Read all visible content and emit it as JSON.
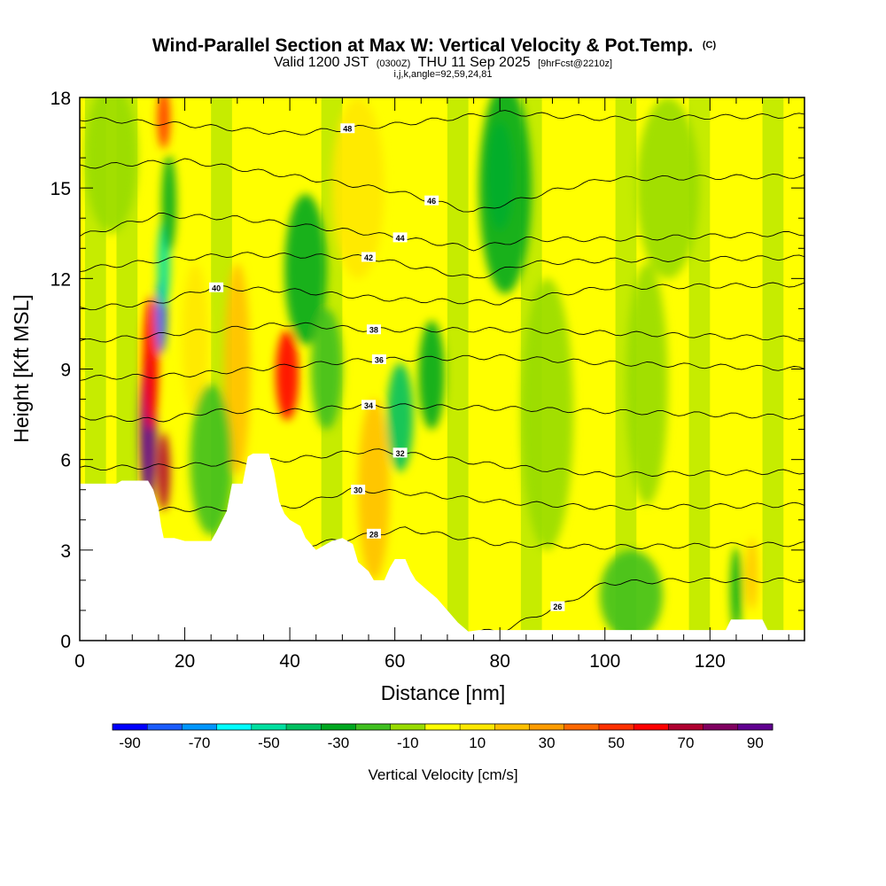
{
  "title": {
    "main": "Wind-Parallel Section at Max W: Vertical Velocity & Pot.Temp.",
    "copyright": "(C)",
    "valid_prefix": "Valid 1200 JST",
    "valid_utc": "(0300Z)",
    "valid_date": "THU 11 Sep 2025",
    "forecast": "[9hrFcst@2210z]",
    "indices": "i,j,k,angle=92,59,24,81"
  },
  "chart_data": {
    "type": "heatmap",
    "xlabel": "Distance [nm]",
    "ylabel": "Height [Kft MSL]",
    "xlim": [
      0,
      138
    ],
    "ylim": [
      0,
      18
    ],
    "x_ticks": [
      0,
      20,
      40,
      60,
      80,
      100,
      120
    ],
    "x_tick_labels": [
      "0",
      "20",
      "40",
      "60",
      "80",
      "100",
      "120"
    ],
    "y_ticks": [
      0,
      3,
      6,
      9,
      12,
      15,
      18
    ],
    "y_tick_labels": [
      "0",
      "3",
      "6",
      "9",
      "12",
      "15",
      "18"
    ],
    "colorbar": {
      "title": "Vertical Velocity [cm/s]",
      "levels": [
        -90,
        -80,
        -70,
        -60,
        -50,
        -40,
        -30,
        -20,
        -10,
        0,
        10,
        20,
        30,
        40,
        50,
        60,
        70,
        80,
        90,
        100
      ],
      "tick_values": [
        -90,
        -70,
        -50,
        -30,
        -10,
        10,
        30,
        50,
        70,
        90
      ],
      "tick_labels": [
        "-90",
        "-70",
        "-50",
        "-30",
        "-10",
        "10",
        "30",
        "50",
        "70",
        "90"
      ],
      "colors": [
        "#0000ff",
        "#1a5cff",
        "#0096ff",
        "#00ffff",
        "#00e0a0",
        "#00c060",
        "#00a820",
        "#40c020",
        "#98dc00",
        "#ffff00",
        "#ffe800",
        "#ffc000",
        "#ff9c00",
        "#ff6800",
        "#ff3000",
        "#ff0000",
        "#b00030",
        "#800060",
        "#600090"
      ]
    },
    "terrain": [
      [
        0,
        5.2
      ],
      [
        7,
        5.2
      ],
      [
        8,
        5.3
      ],
      [
        13,
        5.3
      ],
      [
        14,
        5
      ],
      [
        15,
        4.4
      ],
      [
        15.5,
        3.8
      ],
      [
        16,
        3.4
      ],
      [
        18,
        3.4
      ],
      [
        20,
        3.3
      ],
      [
        25,
        3.3
      ],
      [
        26,
        3.6
      ],
      [
        28,
        4.3
      ],
      [
        29,
        5.2
      ],
      [
        31,
        5.2
      ],
      [
        32,
        6.1
      ],
      [
        33,
        6.2
      ],
      [
        36,
        6.2
      ],
      [
        37,
        5.6
      ],
      [
        38,
        4.6
      ],
      [
        39,
        4.2
      ],
      [
        40,
        4
      ],
      [
        42,
        3.8
      ],
      [
        43,
        3.4
      ],
      [
        45,
        3
      ],
      [
        48,
        3.3
      ],
      [
        50,
        3.4
      ],
      [
        52,
        3.2
      ],
      [
        53,
        2.6
      ],
      [
        55,
        2.3
      ],
      [
        56,
        2
      ],
      [
        58,
        2
      ],
      [
        59,
        2.4
      ],
      [
        60,
        2.7
      ],
      [
        62,
        2.7
      ],
      [
        63,
        2.3
      ],
      [
        64,
        2
      ],
      [
        66,
        1.7
      ],
      [
        68,
        1.4
      ],
      [
        70,
        1
      ],
      [
        72,
        0.6
      ],
      [
        74,
        0.3
      ],
      [
        76,
        0.35
      ],
      [
        80,
        0.35
      ],
      [
        120,
        0.35
      ],
      [
        123,
        0.35
      ],
      [
        124,
        0.7
      ],
      [
        130,
        0.7
      ],
      [
        131,
        0.35
      ],
      [
        138,
        0.35
      ]
    ],
    "w_blobs": [
      {
        "x": 13,
        "y": 7,
        "rx": 1.6,
        "ry": 2.5,
        "w": 95
      },
      {
        "x": 13.5,
        "y": 9.2,
        "rx": 1.5,
        "ry": 2.2,
        "w": 60
      },
      {
        "x": 16,
        "y": 5.6,
        "rx": 1.2,
        "ry": 1.3,
        "w": 70
      },
      {
        "x": 15.5,
        "y": 10.8,
        "rx": 1.1,
        "ry": 1.3,
        "w": -75
      },
      {
        "x": 16,
        "y": 12.5,
        "rx": 1.2,
        "ry": 1.4,
        "w": -45
      },
      {
        "x": 17,
        "y": 14.5,
        "rx": 1.4,
        "ry": 1.6,
        "w": -25
      },
      {
        "x": 16,
        "y": 17.3,
        "rx": 1.2,
        "ry": 1.0,
        "w": 50
      },
      {
        "x": 39.5,
        "y": 8.8,
        "rx": 2.2,
        "ry": 1.5,
        "w": 60
      },
      {
        "x": 30,
        "y": 9,
        "rx": 2.5,
        "ry": 3.5,
        "w": 22
      },
      {
        "x": 22,
        "y": 10,
        "rx": 2.5,
        "ry": 2.5,
        "w": 18
      },
      {
        "x": 43,
        "y": 12.3,
        "rx": 4,
        "ry": 2.5,
        "w": -30
      },
      {
        "x": 47,
        "y": 9,
        "rx": 3,
        "ry": 2,
        "w": -18
      },
      {
        "x": 25,
        "y": 6,
        "rx": 4,
        "ry": 2.5,
        "w": -12
      },
      {
        "x": 61,
        "y": 7.4,
        "rx": 2.5,
        "ry": 1.8,
        "w": -35
      },
      {
        "x": 67,
        "y": 8.8,
        "rx": 2.5,
        "ry": 1.8,
        "w": -30
      },
      {
        "x": 56,
        "y": 5,
        "rx": 3,
        "ry": 3,
        "w": 20
      },
      {
        "x": 80,
        "y": 15.4,
        "rx": 2.5,
        "ry": 1.8,
        "w": -45
      },
      {
        "x": 81,
        "y": 15,
        "rx": 5,
        "ry": 3.5,
        "w": -25
      },
      {
        "x": 89,
        "y": 7.5,
        "rx": 5,
        "ry": 4.5,
        "w": -10
      },
      {
        "x": 108,
        "y": 8.5,
        "rx": 4,
        "ry": 4,
        "w": -8
      },
      {
        "x": 125,
        "y": 1.7,
        "rx": 1.1,
        "ry": 1.4,
        "w": -30
      },
      {
        "x": 128,
        "y": 2.2,
        "rx": 1,
        "ry": 1.2,
        "w": 22
      },
      {
        "x": 105,
        "y": 1.5,
        "rx": 6,
        "ry": 1.5,
        "w": -12
      },
      {
        "x": 112,
        "y": 15,
        "rx": 6,
        "ry": 3,
        "w": -10
      },
      {
        "x": 6,
        "y": 16,
        "rx": 5,
        "ry": 2.5,
        "w": -10
      },
      {
        "x": 53,
        "y": 15,
        "rx": 5,
        "ry": 3,
        "w": 12
      }
    ],
    "theta_levels": [
      {
        "level": 26,
        "heights": [
          [
            0,
            0.2
          ],
          [
            80,
            0.3
          ],
          [
            92,
            1.2
          ],
          [
            100,
            1.9
          ],
          [
            115,
            2.0
          ],
          [
            138,
            2.0
          ]
        ],
        "label_x": 91
      },
      {
        "level": 28,
        "heights": [
          [
            0,
            3.2
          ],
          [
            45,
            3.2
          ],
          [
            55,
            3.5
          ],
          [
            62,
            3.7
          ],
          [
            80,
            3.2
          ],
          [
            100,
            3.1
          ],
          [
            138,
            3.2
          ]
        ],
        "label_x": 56
      },
      {
        "level": 30,
        "heights": [
          [
            0,
            4.3
          ],
          [
            40,
            4.4
          ],
          [
            52,
            5.0
          ],
          [
            62,
            4.9
          ],
          [
            80,
            4.6
          ],
          [
            100,
            4.4
          ],
          [
            138,
            4.5
          ]
        ],
        "label_x": 53
      },
      {
        "level": 32,
        "heights": [
          [
            0,
            5.7
          ],
          [
            20,
            5.8
          ],
          [
            40,
            6.0
          ],
          [
            55,
            6.3
          ],
          [
            62,
            6.2
          ],
          [
            80,
            5.8
          ],
          [
            100,
            5.5
          ],
          [
            138,
            5.6
          ]
        ],
        "label_x": 61
      },
      {
        "level": 34,
        "heights": [
          [
            0,
            7.4
          ],
          [
            15,
            7.3
          ],
          [
            25,
            7.6
          ],
          [
            40,
            7.6
          ],
          [
            55,
            7.8
          ],
          [
            80,
            7.7
          ],
          [
            100,
            7.6
          ],
          [
            138,
            7.4
          ]
        ],
        "label_x": 55
      },
      {
        "level": 36,
        "heights": [
          [
            0,
            8.7
          ],
          [
            20,
            8.8
          ],
          [
            40,
            9.1
          ],
          [
            55,
            9.3
          ],
          [
            80,
            9.4
          ],
          [
            100,
            9.2
          ],
          [
            138,
            9.0
          ]
        ],
        "label_x": 57
      },
      {
        "level": 38,
        "heights": [
          [
            0,
            9.9
          ],
          [
            20,
            10.2
          ],
          [
            40,
            10.5
          ],
          [
            55,
            10.3
          ],
          [
            80,
            10.3
          ],
          [
            100,
            10.2
          ],
          [
            138,
            10.0
          ]
        ],
        "label_x": 56
      },
      {
        "level": 40,
        "heights": [
          [
            0,
            11.0
          ],
          [
            15,
            11.2
          ],
          [
            25,
            11.7
          ],
          [
            40,
            11.6
          ],
          [
            60,
            11.3
          ],
          [
            80,
            11.2
          ],
          [
            100,
            11.7
          ],
          [
            138,
            11.8
          ]
        ],
        "label_x": 26
      },
      {
        "level": 42,
        "heights": [
          [
            0,
            12.3
          ],
          [
            15,
            12.6
          ],
          [
            30,
            12.8
          ],
          [
            55,
            12.7
          ],
          [
            75,
            12.0
          ],
          [
            85,
            12.5
          ],
          [
            100,
            12.6
          ],
          [
            138,
            12.7
          ]
        ],
        "label_x": 55
      },
      {
        "level": 44,
        "heights": [
          [
            0,
            13.4
          ],
          [
            15,
            14.1
          ],
          [
            30,
            14.0
          ],
          [
            55,
            13.5
          ],
          [
            75,
            13.0
          ],
          [
            85,
            13.3
          ],
          [
            100,
            13.3
          ],
          [
            138,
            13.5
          ]
        ],
        "label_x": 61
      },
      {
        "level": 46,
        "heights": [
          [
            0,
            15.7
          ],
          [
            20,
            15.9
          ],
          [
            40,
            15.4
          ],
          [
            60,
            14.9
          ],
          [
            75,
            14.2
          ],
          [
            90,
            14.9
          ],
          [
            100,
            15.3
          ],
          [
            138,
            15.4
          ]
        ],
        "label_x": 67
      },
      {
        "level": 48,
        "heights": [
          [
            0,
            17.3
          ],
          [
            20,
            17.1
          ],
          [
            40,
            16.8
          ],
          [
            60,
            17.1
          ],
          [
            80,
            17.5
          ],
          [
            100,
            17.3
          ],
          [
            138,
            17.4
          ]
        ],
        "label_x": 51
      }
    ]
  }
}
